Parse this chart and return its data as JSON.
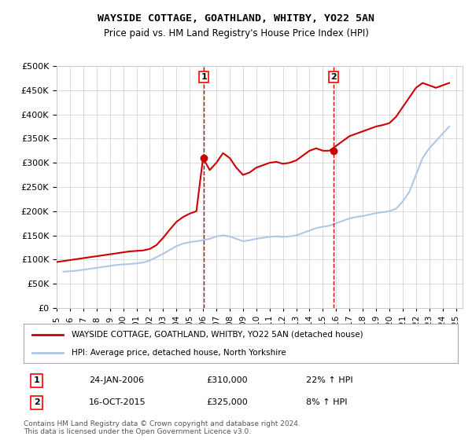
{
  "title": "WAYSIDE COTTAGE, GOATHLAND, WHITBY, YO22 5AN",
  "subtitle": "Price paid vs. HM Land Registry's House Price Index (HPI)",
  "legend_line1": "WAYSIDE COTTAGE, GOATHLAND, WHITBY, YO22 5AN (detached house)",
  "legend_line2": "HPI: Average price, detached house, North Yorkshire",
  "transaction1_label": "1",
  "transaction1_date": "24-JAN-2006",
  "transaction1_price": "£310,000",
  "transaction1_hpi": "22% ↑ HPI",
  "transaction1_year": 2006.07,
  "transaction2_label": "2",
  "transaction2_date": "16-OCT-2015",
  "transaction2_price": "£325,000",
  "transaction2_hpi": "8% ↑ HPI",
  "transaction2_year": 2015.79,
  "footnote": "Contains HM Land Registry data © Crown copyright and database right 2024.\nThis data is licensed under the Open Government Licence v3.0.",
  "hpi_color": "#aec6e8",
  "price_color": "#cc0000",
  "marker_color": "#cc0000",
  "transaction_line_color": "#cc0000",
  "bg_color": "#ffffff",
  "grid_color": "#cccccc",
  "ylim": [
    0,
    500000
  ],
  "yticks": [
    0,
    50000,
    100000,
    150000,
    200000,
    250000,
    300000,
    350000,
    400000,
    450000,
    500000
  ],
  "hpi_data": {
    "years": [
      1995.5,
      1996.0,
      1996.5,
      1997.0,
      1997.5,
      1998.0,
      1998.5,
      1999.0,
      1999.5,
      2000.0,
      2000.5,
      2001.0,
      2001.5,
      2002.0,
      2002.5,
      2003.0,
      2003.5,
      2004.0,
      2004.5,
      2005.0,
      2005.5,
      2006.0,
      2006.5,
      2007.0,
      2007.5,
      2008.0,
      2008.5,
      2009.0,
      2009.5,
      2010.0,
      2010.5,
      2011.0,
      2011.5,
      2012.0,
      2012.5,
      2013.0,
      2013.5,
      2014.0,
      2014.5,
      2015.0,
      2015.5,
      2016.0,
      2016.5,
      2017.0,
      2017.5,
      2018.0,
      2018.5,
      2019.0,
      2019.5,
      2020.0,
      2020.5,
      2021.0,
      2021.5,
      2022.0,
      2022.5,
      2023.0,
      2023.5,
      2024.0,
      2024.5
    ],
    "values": [
      75000,
      76000,
      77000,
      79000,
      81000,
      83000,
      85000,
      87000,
      89000,
      90000,
      91000,
      92000,
      94000,
      98000,
      105000,
      112000,
      120000,
      128000,
      133000,
      136000,
      138000,
      140000,
      143000,
      148000,
      150000,
      148000,
      143000,
      138000,
      140000,
      143000,
      145000,
      147000,
      148000,
      147000,
      148000,
      150000,
      155000,
      160000,
      165000,
      168000,
      170000,
      175000,
      180000,
      185000,
      188000,
      190000,
      193000,
      196000,
      198000,
      200000,
      205000,
      220000,
      240000,
      275000,
      310000,
      330000,
      345000,
      360000,
      375000
    ]
  },
  "price_data": {
    "years": [
      1995.0,
      1995.5,
      1996.0,
      1996.5,
      1997.0,
      1997.5,
      1998.0,
      1998.5,
      1999.0,
      1999.5,
      2000.0,
      2000.5,
      2001.0,
      2001.5,
      2002.0,
      2002.5,
      2003.0,
      2003.5,
      2004.0,
      2004.5,
      2005.0,
      2005.5,
      2006.0,
      2006.5,
      2007.0,
      2007.5,
      2008.0,
      2008.5,
      2009.0,
      2009.5,
      2010.0,
      2010.5,
      2011.0,
      2011.5,
      2012.0,
      2012.5,
      2013.0,
      2013.5,
      2014.0,
      2014.5,
      2015.0,
      2015.5,
      2016.0,
      2016.5,
      2017.0,
      2017.5,
      2018.0,
      2018.5,
      2019.0,
      2019.5,
      2020.0,
      2020.5,
      2021.0,
      2021.5,
      2022.0,
      2022.5,
      2023.0,
      2023.5,
      2024.0,
      2024.5
    ],
    "values": [
      95000,
      97000,
      99000,
      101000,
      103000,
      105000,
      107000,
      109000,
      111000,
      113000,
      115000,
      117000,
      118000,
      119000,
      122000,
      130000,
      145000,
      162000,
      178000,
      188000,
      195000,
      200000,
      310000,
      285000,
      300000,
      320000,
      310000,
      290000,
      275000,
      280000,
      290000,
      295000,
      300000,
      302000,
      298000,
      300000,
      305000,
      315000,
      325000,
      330000,
      325000,
      325000,
      335000,
      345000,
      355000,
      360000,
      365000,
      370000,
      375000,
      378000,
      382000,
      395000,
      415000,
      435000,
      455000,
      465000,
      460000,
      455000,
      460000,
      465000
    ]
  },
  "xlim": [
    1995.0,
    2025.5
  ],
  "xticks": [
    1995,
    1996,
    1997,
    1998,
    1999,
    2000,
    2001,
    2002,
    2003,
    2004,
    2005,
    2006,
    2007,
    2008,
    2009,
    2010,
    2011,
    2012,
    2013,
    2014,
    2015,
    2016,
    2017,
    2018,
    2019,
    2020,
    2021,
    2022,
    2023,
    2024,
    2025
  ]
}
